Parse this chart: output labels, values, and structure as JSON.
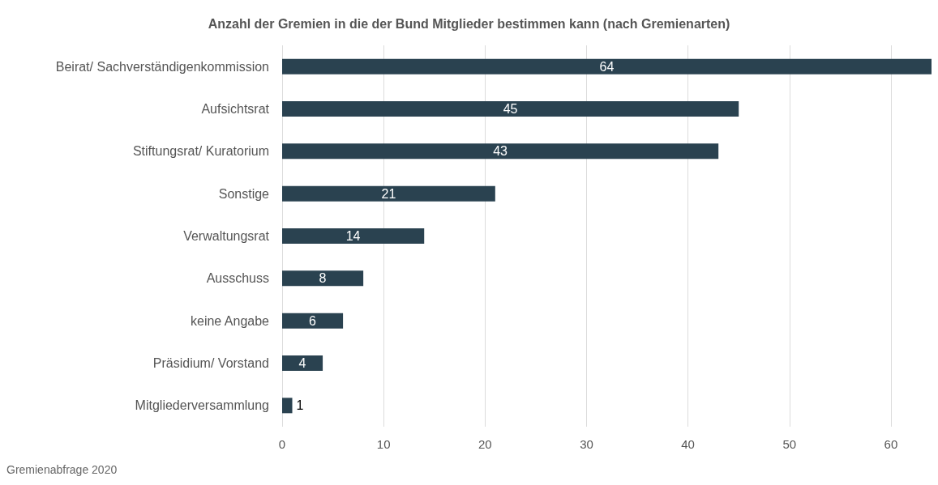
{
  "chart_data": {
    "type": "bar",
    "orientation": "horizontal",
    "title": "Anzahl der Gremien in die der Bund Mitglieder bestimmen kann (nach Gremienarten)",
    "categories": [
      "Beirat/ Sachverständigenkommission",
      "Aufsichtsrat",
      "Stiftungsrat/ Kuratorium",
      "Sonstige",
      "Verwaltungsrat",
      "Ausschuss",
      "keine Angabe",
      "Präsidium/ Vorstand",
      "Mitgliederversammlung"
    ],
    "values": [
      64,
      45,
      43,
      21,
      14,
      8,
      6,
      4,
      1
    ],
    "color": "#2a4250",
    "xlim": [
      0,
      64
    ],
    "xticks": [
      0,
      10,
      20,
      30,
      40,
      50,
      60
    ],
    "grid": "x",
    "data_labels": true,
    "annotations": [
      "Gremienabfrage 2020"
    ]
  }
}
